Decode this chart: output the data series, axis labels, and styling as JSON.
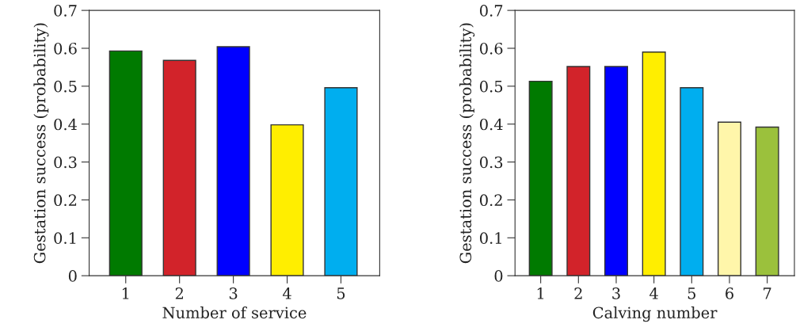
{
  "chart_data": [
    {
      "type": "bar",
      "xlabel": "Number of service",
      "ylabel": "Gestation success (probability)",
      "categories": [
        "1",
        "2",
        "3",
        "4",
        "5"
      ],
      "values": [
        0.593,
        0.568,
        0.604,
        0.398,
        0.496
      ],
      "colors": [
        "#007a00",
        "#d2232a",
        "#0000ff",
        "#ffee00",
        "#00aeef"
      ],
      "ylim": [
        0,
        0.7
      ],
      "yticks": [
        0,
        0.1,
        0.2,
        0.3,
        0.4,
        0.5,
        0.6,
        0.7
      ],
      "grid": false
    },
    {
      "type": "bar",
      "xlabel": "Calving number",
      "ylabel": "Gestation success (probability)",
      "categories": [
        "1",
        "2",
        "3",
        "4",
        "5",
        "6",
        "7"
      ],
      "values": [
        0.513,
        0.552,
        0.552,
        0.59,
        0.496,
        0.405,
        0.392
      ],
      "colors": [
        "#007a00",
        "#d2232a",
        "#0000ff",
        "#ffee00",
        "#00aeef",
        "#fff6aa",
        "#9bc13c"
      ],
      "ylim": [
        0,
        0.7
      ],
      "yticks": [
        0,
        0.1,
        0.2,
        0.3,
        0.4,
        0.5,
        0.6,
        0.7
      ],
      "grid": false
    }
  ]
}
